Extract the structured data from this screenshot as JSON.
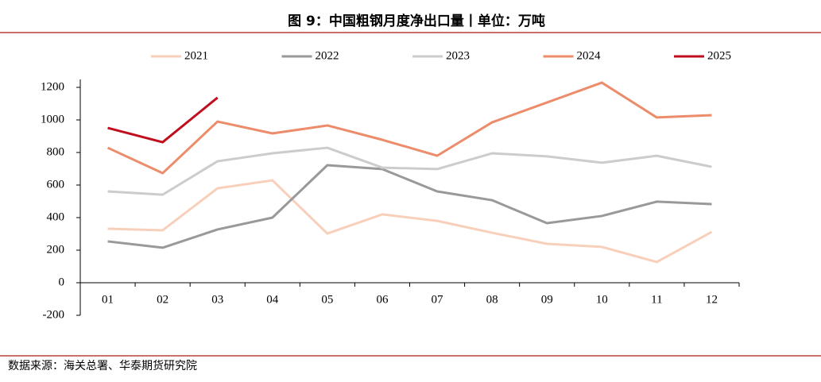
{
  "chart_data": {
    "type": "line",
    "title": "图 9：中国粗钢月度净出口量丨单位：万吨",
    "source": "数据来源：海关总署、华泰期货研究院",
    "categories": [
      "01",
      "02",
      "03",
      "04",
      "05",
      "06",
      "07",
      "08",
      "09",
      "10",
      "11",
      "12"
    ],
    "series": [
      {
        "name": "2021",
        "color": "#f8cfba",
        "values": [
          332,
          322,
          580,
          629,
          302,
          420,
          380,
          307,
          239,
          220,
          127,
          312
        ]
      },
      {
        "name": "2022",
        "color": "#999999",
        "values": [
          254,
          215,
          327,
          400,
          722,
          698,
          561,
          507,
          366,
          410,
          498,
          483
        ]
      },
      {
        "name": "2023",
        "color": "#cccccc",
        "values": [
          561,
          541,
          746,
          795,
          829,
          707,
          698,
          795,
          776,
          737,
          780,
          712
        ]
      },
      {
        "name": "2024",
        "color": "#ec8c6a",
        "values": [
          829,
          673,
          990,
          917,
          966,
          878,
          780,
          985,
          1107,
          1229,
          1015,
          1029
        ]
      },
      {
        "name": "2025",
        "color": "#c00e1e",
        "values": [
          951,
          863,
          1137,
          null,
          null,
          null,
          null,
          null,
          null,
          null,
          null,
          null
        ]
      }
    ],
    "ylim": [
      -200,
      1200
    ],
    "yticks": [
      -200,
      0,
      200,
      400,
      600,
      800,
      1000,
      1200
    ],
    "legend": "top"
  }
}
